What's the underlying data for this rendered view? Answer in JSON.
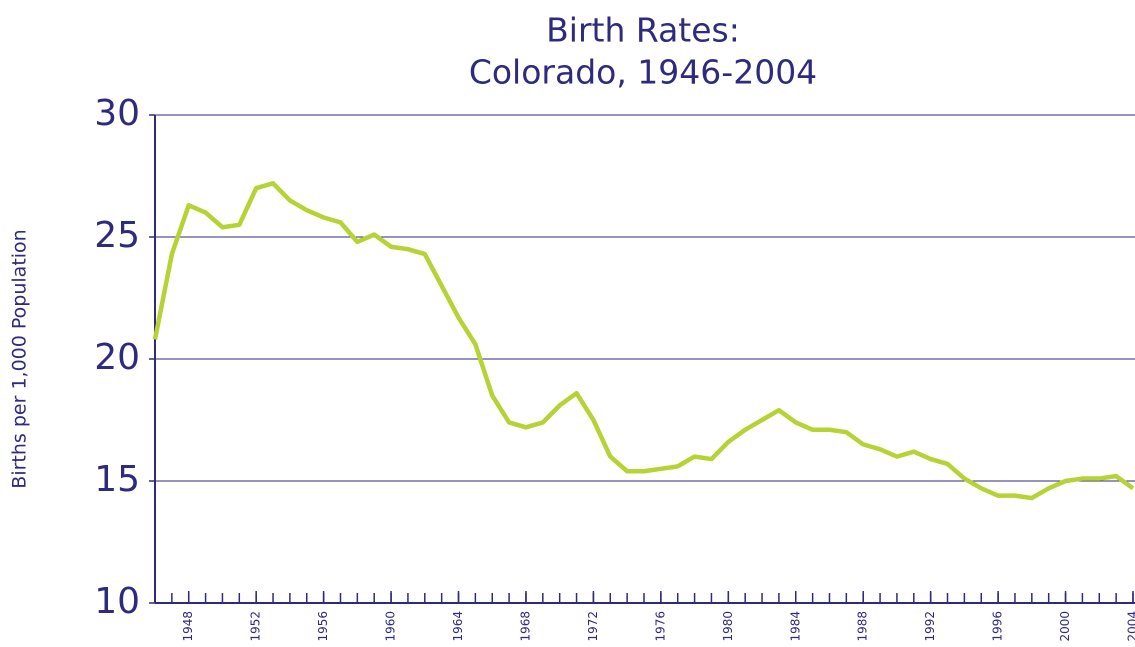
{
  "chart_data": {
    "type": "line",
    "title": "Birth Rates:",
    "subtitle": "Colorado, 1946-2004",
    "y_label": "Births per 1,000 Population",
    "x": [
      1946,
      1947,
      1948,
      1949,
      1950,
      1951,
      1952,
      1953,
      1954,
      1955,
      1956,
      1957,
      1958,
      1959,
      1960,
      1961,
      1962,
      1963,
      1964,
      1965,
      1966,
      1967,
      1968,
      1969,
      1970,
      1971,
      1972,
      1973,
      1974,
      1975,
      1976,
      1977,
      1978,
      1979,
      1980,
      1981,
      1982,
      1983,
      1984,
      1985,
      1986,
      1987,
      1988,
      1989,
      1990,
      1991,
      1992,
      1993,
      1994,
      1995,
      1996,
      1997,
      1998,
      1999,
      2000,
      2001,
      2002,
      2003,
      2004
    ],
    "series": [
      {
        "name": "Colorado",
        "color": "#b5d334",
        "values": [
          20.8,
          24.3,
          26.3,
          26.0,
          25.4,
          25.5,
          27.0,
          27.2,
          26.5,
          26.1,
          25.8,
          25.6,
          24.8,
          25.1,
          24.6,
          24.5,
          24.3,
          23.0,
          21.7,
          20.6,
          18.5,
          17.4,
          17.2,
          17.4,
          18.1,
          18.6,
          17.5,
          16.0,
          15.4,
          15.4,
          15.5,
          15.6,
          16.0,
          15.9,
          16.6,
          17.1,
          17.5,
          17.9,
          17.4,
          17.1,
          17.1,
          17.0,
          16.5,
          16.3,
          16.0,
          16.2,
          15.9,
          15.7,
          15.1,
          14.7,
          14.4,
          14.4,
          14.3,
          14.7,
          15.0,
          15.1,
          15.1,
          15.2,
          14.7
        ]
      }
    ],
    "xlim": [
      1946,
      2004
    ],
    "xticks": [
      1948,
      1952,
      1956,
      1960,
      1964,
      1968,
      1972,
      1976,
      1980,
      1984,
      1988,
      1992,
      1996,
      2000,
      2004
    ],
    "ylim": [
      10,
      30
    ],
    "yticks": [
      10,
      15,
      20,
      25,
      30
    ],
    "grid": true,
    "grid_color": "#2e2a7e"
  }
}
